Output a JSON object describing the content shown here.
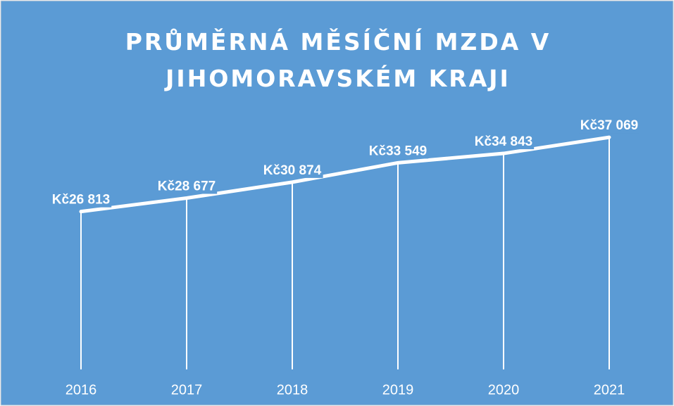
{
  "chart_data": {
    "type": "line",
    "title": "PRŮMĚRNÁ MĚSÍČNÍ MZDA V JIHOMORAVSKÉM KRAJI",
    "categories": [
      "2016",
      "2017",
      "2018",
      "2019",
      "2020",
      "2021"
    ],
    "values": [
      26813,
      28677,
      30874,
      33549,
      34843,
      37069
    ],
    "value_labels": [
      "Kč26 813",
      "Kč28 677",
      "Kč30 874",
      "Kč33 549",
      "Kč34 843",
      "Kč37 069"
    ],
    "color": "#ffffff",
    "background": "#5b9bd5",
    "ylim": [
      5000,
      40000
    ],
    "drop_lines": true
  }
}
